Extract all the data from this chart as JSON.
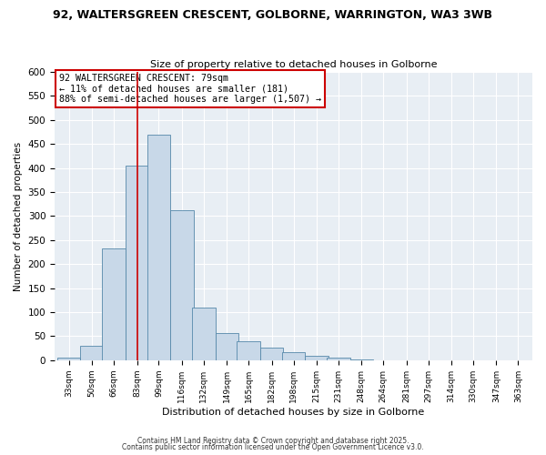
{
  "title": "92, WALTERSGREEN CRESCENT, GOLBORNE, WARRINGTON, WA3 3WB",
  "subtitle": "Size of property relative to detached houses in Golborne",
  "xlabel": "Distribution of detached houses by size in Golborne",
  "ylabel": "Number of detached properties",
  "bin_labels": [
    "33sqm",
    "50sqm",
    "66sqm",
    "83sqm",
    "99sqm",
    "116sqm",
    "132sqm",
    "149sqm",
    "165sqm",
    "182sqm",
    "198sqm",
    "215sqm",
    "231sqm",
    "248sqm",
    "264sqm",
    "281sqm",
    "297sqm",
    "314sqm",
    "330sqm",
    "347sqm",
    "363sqm"
  ],
  "bar_heights": [
    5,
    30,
    233,
    405,
    470,
    312,
    110,
    57,
    40,
    27,
    16,
    10,
    5,
    2,
    0,
    0,
    0,
    0,
    0,
    0,
    0
  ],
  "bar_color": "#c8d8e8",
  "bar_edge_color": "#5588aa",
  "vline_x": 83,
  "vline_color": "#cc0000",
  "ylim": [
    0,
    600
  ],
  "yticks": [
    0,
    50,
    100,
    150,
    200,
    250,
    300,
    350,
    400,
    450,
    500,
    550,
    600
  ],
  "annotation_title": "92 WALTERSGREEN CRESCENT: 79sqm",
  "annotation_line1": "← 11% of detached houses are smaller (181)",
  "annotation_line2": "88% of semi-detached houses are larger (1,507) →",
  "annotation_box_facecolor": "#ffffff",
  "annotation_box_edgecolor": "#cc0000",
  "background_color": "#ffffff",
  "plot_bg_color": "#e8eef4",
  "grid_color": "#ffffff",
  "footer1": "Contains HM Land Registry data © Crown copyright and database right 2025.",
  "footer2": "Contains public sector information licensed under the Open Government Licence v3.0.",
  "bin_width": 17,
  "num_bins": 21
}
